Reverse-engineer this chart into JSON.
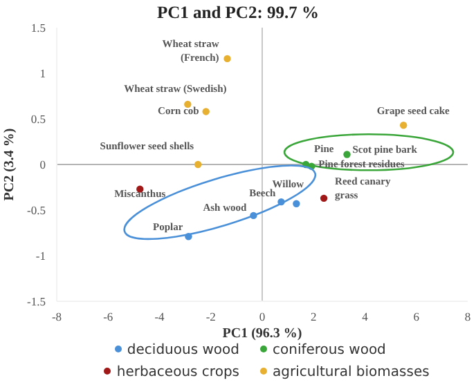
{
  "chart_data": {
    "type": "scatter",
    "title": "PC1 and PC2: 99.7 %",
    "xlabel": "PC1 (96.3 %)",
    "ylabel": "PC2 (3.4 %)",
    "xlim": [
      -8,
      8
    ],
    "xticks": [
      -8,
      -6,
      -4,
      -2,
      0,
      2,
      4,
      6,
      8
    ],
    "ylim": [
      -1.5,
      1.5
    ],
    "yticks": [
      -1.5,
      -1,
      -0.5,
      0,
      0.5,
      1,
      1.5
    ],
    "grid": false,
    "legend": "bottom",
    "marker": "circle",
    "ref_lines": [
      {
        "axis": "x",
        "value": 0,
        "color": "#c8c8c8"
      },
      {
        "axis": "y",
        "value": 0,
        "color": "#b4b4b4"
      }
    ],
    "series": [
      {
        "name": "deciduous wood",
        "color": "#4a90d9",
        "x": [
          0.74,
          1.33,
          -0.34,
          -2.87
        ],
        "values": [
          -0.41,
          -0.43,
          -0.56,
          -0.79
        ]
      },
      {
        "name": "coniferous wood",
        "color": "#3aa63a",
        "x": [
          1.7,
          1.92,
          3.3
        ],
        "values": [
          0.0,
          -0.02,
          0.11
        ]
      },
      {
        "name": "herbaceous crops",
        "color": "#a01818",
        "x": [
          -4.76,
          2.4
        ],
        "values": [
          -0.27,
          -0.37
        ]
      },
      {
        "name": "agricultural biomasses",
        "color": "#e8b030",
        "x": [
          -1.36,
          -2.9,
          -2.19,
          -2.5,
          5.5
        ],
        "values": [
          1.16,
          0.66,
          0.58,
          0.0,
          0.43
        ]
      }
    ],
    "annotations": [
      {
        "text": "Wheat straw\n(French)",
        "x": -1.36,
        "y": 1.16
      },
      {
        "text": "Wheat straw (Swedish)",
        "x": -2.9,
        "y": 0.66
      },
      {
        "text": "Corn cob",
        "x": -2.19,
        "y": 0.58
      },
      {
        "text": "Sunflower seed shells",
        "x": -2.5,
        "y": 0.0
      },
      {
        "text": "Grape seed cake",
        "x": 5.5,
        "y": 0.43
      },
      {
        "text": "Pine",
        "x": 1.7,
        "y": 0.0
      },
      {
        "text": "Scot pine bark",
        "x": 3.3,
        "y": 0.11
      },
      {
        "text": "Pine forest residues",
        "x": 1.92,
        "y": -0.02
      },
      {
        "text": "Miscanthus",
        "x": -4.76,
        "y": -0.27
      },
      {
        "text": "Reed canary\ngrass",
        "x": 2.4,
        "y": -0.37
      },
      {
        "text": "Beech",
        "x": 0.74,
        "y": -0.41
      },
      {
        "text": "Willow",
        "x": 1.33,
        "y": -0.43
      },
      {
        "text": "Ash wood",
        "x": -0.34,
        "y": -0.56
      },
      {
        "text": "Poplar",
        "x": -2.87,
        "y": -0.79
      }
    ]
  }
}
